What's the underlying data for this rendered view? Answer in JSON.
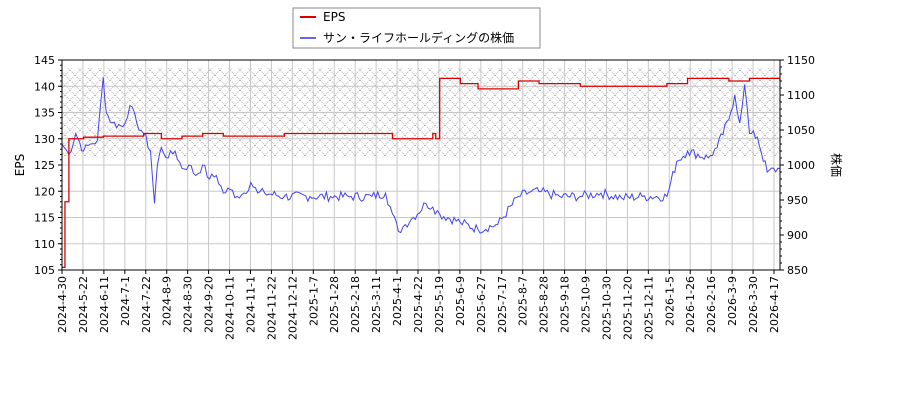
{
  "chart_data": {
    "type": "line",
    "title": "",
    "legend": {
      "position": "top-center",
      "entries": [
        {
          "label": "EPS",
          "color": "#dd0000"
        },
        {
          "label": "サン・ライフホールディングの株価",
          "color": "#4444ee"
        }
      ]
    },
    "left_axis": {
      "label": "EPS",
      "ylim": [
        105,
        145
      ],
      "ticks": [
        "105",
        "110",
        "115",
        "120",
        "125",
        "130",
        "135",
        "140",
        "145"
      ]
    },
    "right_axis": {
      "label": "株価",
      "ylim": [
        850,
        1150
      ],
      "ticks": [
        "850",
        "900",
        "950",
        "1000",
        "1050",
        "1100",
        "1150"
      ]
    },
    "x_tick_labels": [
      "2024-4-30",
      "2024-5-22",
      "2024-6-11",
      "2024-7-1",
      "2024-7-22",
      "2024-8-9",
      "2024-8-30",
      "2024-9-20",
      "2024-10-11",
      "2024-11-1",
      "2024-11-22",
      "2024-12-12",
      "2025-1-7",
      "2025-1-28",
      "2025-2-18",
      "2025-3-11",
      "2025-4-1",
      "2025-4-22",
      "2025-5-19",
      "2025-6-9",
      "2025-6-27",
      "2025-7-17",
      "2025-8-7",
      "2025-8-28",
      "2025-9-18",
      "2025-10-9",
      "2025-10-30",
      "2025-11-20",
      "2025-12-11",
      "2026-1-5",
      "2026-1-26",
      "2026-2-16",
      "2026-3-9",
      "2026-3-30",
      "2026-4-17"
    ],
    "grid": true,
    "hatched_band": {
      "y_top_eps": 143.5,
      "y_bottom_eps": 126.5
    },
    "series": [
      {
        "name": "EPS",
        "axis": "left",
        "color": "#dd0000",
        "x": [
          "2024-4-30",
          "2024-5-3",
          "2024-5-7",
          "2024-5-22",
          "2024-6-11",
          "2024-7-1",
          "2024-7-22",
          "2024-8-9",
          "2024-8-30",
          "2024-9-20",
          "2024-10-11",
          "2024-11-1",
          "2024-11-22",
          "2024-12-12",
          "2025-1-7",
          "2025-1-28",
          "2025-2-18",
          "2025-3-11",
          "2025-4-1",
          "2025-4-22",
          "2025-5-12",
          "2025-5-15",
          "2025-5-19",
          "2025-6-9",
          "2025-6-27",
          "2025-7-17",
          "2025-8-7",
          "2025-8-28",
          "2025-9-18",
          "2025-10-9",
          "2025-10-30",
          "2025-11-20",
          "2025-12-11",
          "2026-1-5",
          "2026-1-26",
          "2026-2-16",
          "2026-3-9",
          "2026-3-30",
          "2026-4-17",
          "2026-4-30"
        ],
        "values": [
          105.5,
          118,
          130,
          130.3,
          130.5,
          130.5,
          131,
          130,
          130.5,
          131,
          130.5,
          130.5,
          130.5,
          131,
          131,
          131,
          131,
          131,
          130,
          130,
          131,
          130,
          141.5,
          140.5,
          139.5,
          139.5,
          141,
          140.5,
          140.5,
          140,
          140,
          140,
          140,
          140.5,
          141.5,
          141.5,
          141,
          141.5,
          141.5,
          141.3
        ]
      },
      {
        "name": "サン・ライフホールディングの株価",
        "axis": "right",
        "color": "#4444ee",
        "x": [
          "2024-4-30",
          "2024-5-7",
          "2024-5-14",
          "2024-5-22",
          "2024-5-29",
          "2024-6-5",
          "2024-6-11",
          "2024-6-14",
          "2024-6-20",
          "2024-7-1",
          "2024-7-8",
          "2024-7-15",
          "2024-7-22",
          "2024-7-29",
          "2024-8-2",
          "2024-8-5",
          "2024-8-9",
          "2024-8-16",
          "2024-8-23",
          "2024-8-30",
          "2024-9-6",
          "2024-9-13",
          "2024-9-20",
          "2024-9-27",
          "2024-10-4",
          "2024-10-11",
          "2024-10-18",
          "2024-10-25",
          "2024-11-1",
          "2024-11-8",
          "2024-11-15",
          "2024-11-22",
          "2024-12-12",
          "2025-1-7",
          "2025-1-28",
          "2025-2-18",
          "2025-3-11",
          "2025-3-25",
          "2025-4-1",
          "2025-4-7",
          "2025-4-14",
          "2025-4-22",
          "2025-5-5",
          "2025-5-12",
          "2025-5-19",
          "2025-6-9",
          "2025-6-27",
          "2025-7-17",
          "2025-8-7",
          "2025-8-20",
          "2025-8-28",
          "2025-9-18",
          "2025-10-9",
          "2025-10-30",
          "2025-11-20",
          "2025-12-11",
          "2026-1-5",
          "2026-1-15",
          "2026-1-26",
          "2026-2-16",
          "2026-2-25",
          "2026-3-9",
          "2026-3-15",
          "2026-3-20",
          "2026-3-25",
          "2026-3-30",
          "2026-4-7",
          "2026-4-17",
          "2026-4-30"
        ],
        "values": [
          1030,
          1015,
          1045,
          1020,
          1030,
          1035,
          1125,
          1075,
          1060,
          1055,
          1085,
          1060,
          1045,
          1020,
          945,
          1000,
          1025,
          1010,
          1020,
          995,
          1000,
          985,
          1000,
          980,
          985,
          960,
          965,
          955,
          960,
          975,
          960,
          960,
          955,
          955,
          955,
          955,
          955,
          960,
          930,
          905,
          915,
          925,
          945,
          940,
          930,
          918,
          908,
          915,
          955,
          962,
          962,
          955,
          955,
          960,
          953,
          955,
          955,
          1005,
          1020,
          1010,
          1025,
          1065,
          1100,
          1060,
          1115,
          1045,
          1040,
          990,
          995
        ]
      }
    ]
  }
}
